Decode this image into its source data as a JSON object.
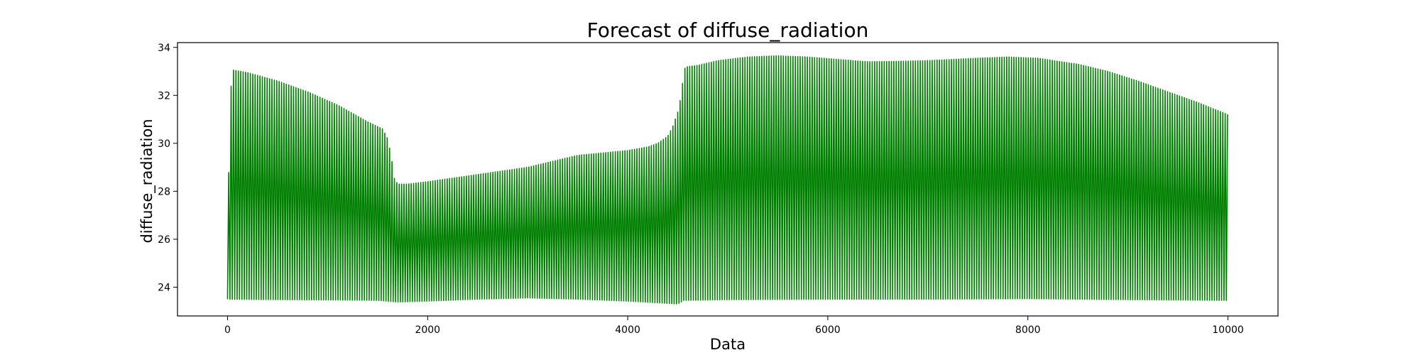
{
  "chart_data": {
    "type": "line",
    "title": "Forecast of diffuse_radiation",
    "xlabel": "Data",
    "ylabel": "diffuse_radiation",
    "xlim": [
      -500,
      10500
    ],
    "ylim": [
      22.8,
      34.2
    ],
    "x_ticks": [
      0,
      2000,
      4000,
      6000,
      8000,
      10000
    ],
    "x_tick_labels": [
      "0",
      "2000",
      "4000",
      "6000",
      "8000",
      "10000"
    ],
    "y_ticks": [
      24,
      26,
      28,
      30,
      32,
      34
    ],
    "y_tick_labels": [
      "24",
      "26",
      "28",
      "30",
      "32",
      "34"
    ],
    "grid": false,
    "legend": "none",
    "series": [
      {
        "color": "#008000",
        "x_range": [
          0,
          10000
        ],
        "cycle_length": 24,
        "peak_envelope": {
          "x": [
            0,
            20,
            40,
            60,
            200,
            500,
            800,
            1100,
            1400,
            1550,
            1600,
            1640,
            1660,
            1700,
            1800,
            2000,
            2500,
            3000,
            3500,
            4000,
            4200,
            4300,
            4400,
            4450,
            4500,
            4540,
            4560,
            4600,
            4700,
            4900,
            5200,
            5500,
            5800,
            6100,
            6400,
            6700,
            7000,
            7500,
            7800,
            8100,
            8500,
            8800,
            9100,
            9400,
            9700,
            10000
          ],
          "y": [
            23.5,
            32.3,
            32.4,
            33.05,
            32.95,
            32.6,
            32.15,
            31.6,
            30.9,
            30.6,
            30.2,
            29.4,
            28.6,
            28.3,
            28.3,
            28.4,
            28.7,
            29.0,
            29.5,
            29.7,
            29.85,
            30.0,
            30.3,
            30.7,
            31.3,
            32.1,
            33.1,
            33.2,
            33.25,
            33.45,
            33.6,
            33.65,
            33.6,
            33.5,
            33.4,
            33.42,
            33.45,
            33.55,
            33.6,
            33.55,
            33.3,
            33.0,
            32.6,
            32.15,
            31.7,
            31.2
          ]
        },
        "trough_envelope": {
          "x": [
            0,
            500,
            1000,
            1500,
            1700,
            2000,
            2500,
            3000,
            3500,
            4000,
            4300,
            4500,
            4560,
            5000,
            6000,
            7000,
            8000,
            9000,
            10000
          ],
          "y": [
            23.5,
            23.48,
            23.47,
            23.45,
            23.38,
            23.42,
            23.5,
            23.55,
            23.5,
            23.42,
            23.35,
            23.3,
            23.45,
            23.48,
            23.5,
            23.5,
            23.52,
            23.48,
            23.45
          ]
        }
      }
    ]
  }
}
